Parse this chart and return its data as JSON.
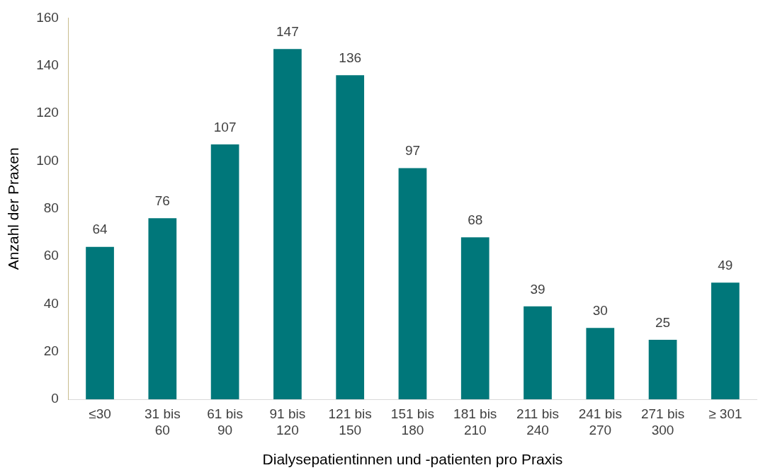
{
  "chart_data": {
    "type": "bar",
    "xlabel": "Dialysepatientinnen und -patienten pro Praxis",
    "ylabel": "Anzahl der Praxen",
    "categories": [
      "≤30",
      "31 bis 60",
      "61 bis 90",
      "91 bis 120",
      "121 bis 150",
      "151 bis 180",
      "181 bis 210",
      "211 bis 240",
      "241 bis 270",
      "271 bis 300",
      "≥ 301"
    ],
    "values": [
      64,
      76,
      107,
      147,
      136,
      97,
      68,
      39,
      30,
      25,
      49
    ],
    "color": "#00777a",
    "ylim": [
      0,
      160
    ],
    "yticks": [
      0,
      20,
      40,
      60,
      80,
      100,
      120,
      140,
      160
    ],
    "grid": false,
    "legend": false,
    "data_labels": true
  }
}
